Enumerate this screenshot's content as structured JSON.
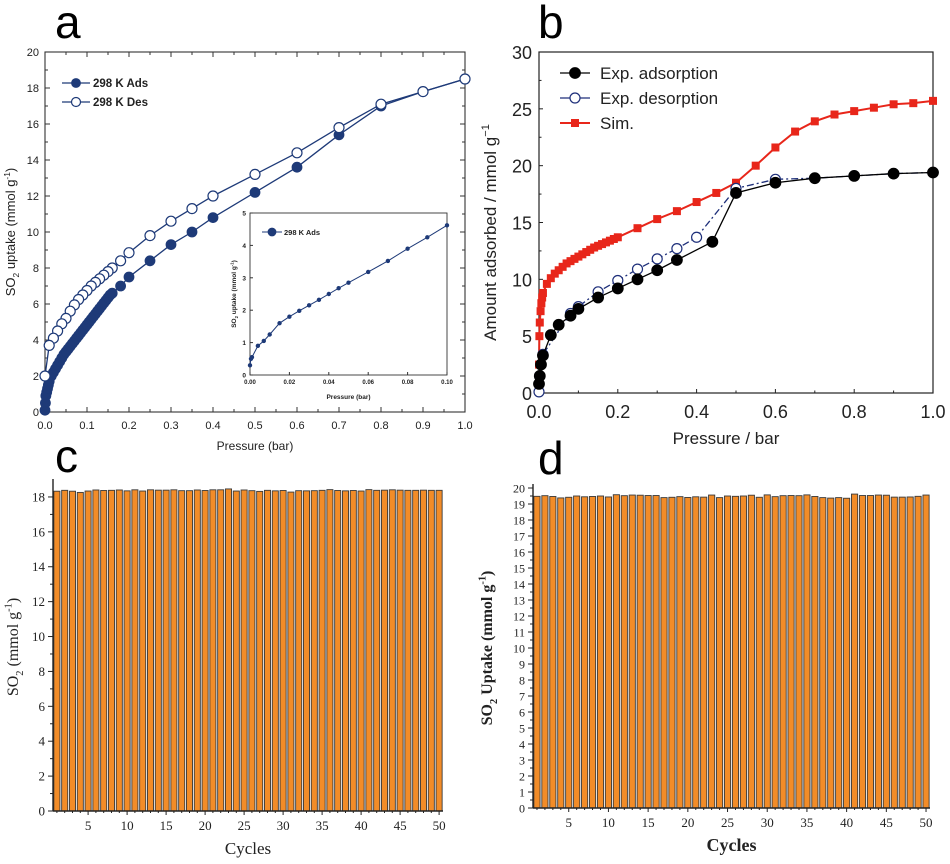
{
  "figure": {
    "panel_labels": [
      "a",
      "b",
      "c",
      "d"
    ]
  },
  "chart_data": [
    {
      "panel": "a",
      "type": "line",
      "title": "",
      "xlabel": "Pressure (bar)",
      "ylabel": "SO2 uptake (mmol g-1)",
      "ylabel_parts": {
        "main": "SO",
        "sub": "2",
        "rest": " uptake (mmol g",
        "sup": "-1",
        "end": ")"
      },
      "xlim": [
        0,
        1.0
      ],
      "ylim": [
        0,
        20
      ],
      "xticks": [
        "0.0",
        "0.1",
        "0.2",
        "0.3",
        "0.4",
        "0.5",
        "0.6",
        "0.7",
        "0.8",
        "0.9",
        "1.0"
      ],
      "yticks": [
        "0",
        "2",
        "4",
        "6",
        "8",
        "10",
        "12",
        "14",
        "16",
        "18",
        "20"
      ],
      "grid": false,
      "legend_position": "top-left",
      "colors": {
        "series": "#1e3a78"
      },
      "series": [
        {
          "name": "298 K Ads",
          "marker": "filled-circle",
          "x": [
            0.0,
            0.001,
            0.002,
            0.004,
            0.006,
            0.008,
            0.01,
            0.015,
            0.02,
            0.025,
            0.03,
            0.035,
            0.04,
            0.045,
            0.05,
            0.055,
            0.06,
            0.065,
            0.07,
            0.075,
            0.08,
            0.085,
            0.09,
            0.095,
            0.1,
            0.105,
            0.11,
            0.115,
            0.12,
            0.125,
            0.13,
            0.135,
            0.14,
            0.145,
            0.15,
            0.155,
            0.16,
            0.18,
            0.2,
            0.25,
            0.3,
            0.35,
            0.4,
            0.5,
            0.6,
            0.7,
            0.8,
            0.9,
            1.0
          ],
          "y": [
            0.1,
            0.5,
            0.9,
            1.1,
            1.3,
            1.5,
            1.7,
            2.0,
            2.2,
            2.4,
            2.6,
            2.8,
            3.0,
            3.2,
            3.35,
            3.5,
            3.65,
            3.8,
            3.95,
            4.1,
            4.25,
            4.4,
            4.55,
            4.7,
            4.85,
            5.0,
            5.15,
            5.3,
            5.45,
            5.6,
            5.75,
            5.9,
            6.05,
            6.2,
            6.35,
            6.5,
            6.6,
            7.0,
            7.5,
            8.4,
            9.3,
            10.0,
            10.8,
            12.2,
            13.6,
            15.4,
            17.0,
            17.8,
            18.5
          ]
        },
        {
          "name": "298 K Des",
          "marker": "open-circle",
          "x": [
            1.0,
            0.9,
            0.8,
            0.7,
            0.6,
            0.5,
            0.4,
            0.35,
            0.3,
            0.25,
            0.2,
            0.18,
            0.16,
            0.15,
            0.14,
            0.13,
            0.12,
            0.11,
            0.1,
            0.09,
            0.08,
            0.07,
            0.06,
            0.05,
            0.04,
            0.03,
            0.02,
            0.01,
            0.0
          ],
          "y": [
            18.5,
            17.8,
            17.1,
            15.8,
            14.4,
            13.2,
            12.0,
            11.3,
            10.6,
            9.8,
            8.85,
            8.4,
            8.0,
            7.8,
            7.6,
            7.4,
            7.2,
            7.0,
            6.75,
            6.5,
            6.25,
            5.95,
            5.6,
            5.2,
            4.9,
            4.5,
            4.1,
            3.7,
            2.0
          ]
        }
      ],
      "inset": {
        "type": "line",
        "xlabel": "Pressure (bar)",
        "ylabel": "SO2 uptake (mmol g-1)",
        "ylabel_parts": {
          "main": "SO",
          "sub": "2",
          "rest": " uptake (mmol g",
          "sup": "-1",
          "end": ")"
        },
        "xlim": [
          0,
          0.1
        ],
        "ylim": [
          0,
          5
        ],
        "xticks": [
          "0.00",
          "0.02",
          "0.04",
          "0.06",
          "0.08",
          "0.10"
        ],
        "yticks": [
          "0",
          "1",
          "2",
          "3",
          "4",
          "5"
        ],
        "legend_position": "top-left",
        "series": [
          {
            "name": "298 K Ads",
            "marker": "filled-circle",
            "x": [
              0.0,
              0.0005,
              0.001,
              0.004,
              0.007,
              0.01,
              0.015,
              0.02,
              0.025,
              0.03,
              0.035,
              0.04,
              0.045,
              0.05,
              0.06,
              0.07,
              0.08,
              0.09,
              0.1
            ],
            "y": [
              0.3,
              0.5,
              0.55,
              0.9,
              1.05,
              1.25,
              1.6,
              1.8,
              1.98,
              2.15,
              2.32,
              2.5,
              2.68,
              2.85,
              3.18,
              3.52,
              3.9,
              4.25,
              4.62
            ]
          }
        ]
      }
    },
    {
      "panel": "b",
      "type": "line",
      "title": "",
      "xlabel": "Pressure / bar",
      "ylabel": "Amount adsorbed / mmol g-1",
      "ylabel_parts": {
        "main": "Amount adsorbed / mmol g",
        "sup": "−1"
      },
      "xlim": [
        0,
        1.0
      ],
      "ylim": [
        0,
        30
      ],
      "xticks": [
        "0.0",
        "0.2",
        "0.4",
        "0.6",
        "0.8",
        "1.0"
      ],
      "yticks": [
        "0",
        "5",
        "10",
        "15",
        "20",
        "25",
        "30"
      ],
      "grid": false,
      "legend_position": "top-left",
      "colors": {
        "adsorption": "#000000",
        "desorption": "#1e2f7a",
        "sim": "#e8261a"
      },
      "series": [
        {
          "name": "Exp. adsorption",
          "marker": "filled-circle",
          "line": "solid",
          "x": [
            0.0,
            0.002,
            0.005,
            0.01,
            0.03,
            0.05,
            0.08,
            0.1,
            0.15,
            0.2,
            0.25,
            0.3,
            0.35,
            0.44,
            0.5,
            0.6,
            0.7,
            0.8,
            0.9,
            1.0
          ],
          "y": [
            0.8,
            1.5,
            2.5,
            3.3,
            5.1,
            6.0,
            6.8,
            7.4,
            8.4,
            9.2,
            10.0,
            10.8,
            11.7,
            13.3,
            17.6,
            18.5,
            18.9,
            19.1,
            19.3,
            19.4
          ]
        },
        {
          "name": "Exp. desorption",
          "marker": "open-circle",
          "line": "dash-dot",
          "x": [
            1.0,
            0.9,
            0.8,
            0.7,
            0.6,
            0.5,
            0.4,
            0.35,
            0.3,
            0.25,
            0.2,
            0.15,
            0.1,
            0.08,
            0.01,
            0.002,
            0.0
          ],
          "y": [
            19.4,
            19.3,
            19.1,
            18.9,
            18.8,
            18.0,
            13.7,
            12.7,
            11.8,
            10.9,
            9.9,
            8.9,
            7.6,
            7.0,
            3.4,
            1.5,
            0.1
          ]
        },
        {
          "name": "Sim.",
          "marker": "filled-square",
          "line": "solid",
          "x": [
            0.0,
            0.001,
            0.002,
            0.004,
            0.006,
            0.008,
            0.01,
            0.02,
            0.03,
            0.04,
            0.05,
            0.06,
            0.07,
            0.08,
            0.09,
            0.1,
            0.11,
            0.12,
            0.13,
            0.14,
            0.15,
            0.16,
            0.17,
            0.18,
            0.19,
            0.2,
            0.25,
            0.3,
            0.35,
            0.4,
            0.45,
            0.5,
            0.55,
            0.6,
            0.65,
            0.7,
            0.75,
            0.8,
            0.85,
            0.9,
            0.95,
            1.0
          ],
          "y": [
            2.5,
            5.0,
            6.2,
            7.2,
            7.9,
            8.4,
            8.8,
            9.6,
            10.1,
            10.5,
            10.8,
            11.1,
            11.4,
            11.6,
            11.8,
            12.0,
            12.2,
            12.4,
            12.6,
            12.8,
            12.95,
            13.1,
            13.25,
            13.4,
            13.55,
            13.7,
            14.5,
            15.3,
            16.0,
            16.8,
            17.6,
            18.5,
            20.0,
            21.6,
            23.0,
            23.9,
            24.5,
            24.8,
            25.1,
            25.4,
            25.5,
            25.7
          ]
        }
      ]
    },
    {
      "panel": "c",
      "type": "bar",
      "title": "",
      "xlabel": "Cycles",
      "ylabel": "SO2 (mmol g-1)",
      "ylabel_parts": {
        "main": "SO",
        "sub": "2",
        "rest": " (mmol g",
        "sup": "-1",
        "end": ")"
      },
      "xlim": [
        0.5,
        50.5
      ],
      "ylim": [
        0,
        18.8
      ],
      "xticks": [
        "5",
        "10",
        "15",
        "20",
        "25",
        "30",
        "35",
        "40",
        "45",
        "50"
      ],
      "yticks": [
        "0",
        "2",
        "4",
        "6",
        "8",
        "10",
        "12",
        "14",
        "16",
        "18"
      ],
      "grid": false,
      "colors": {
        "bar": "#f28c28",
        "bar_edge": "#3a3a3a"
      },
      "categories": [
        1,
        2,
        3,
        4,
        5,
        6,
        7,
        8,
        9,
        10,
        11,
        12,
        13,
        14,
        15,
        16,
        17,
        18,
        19,
        20,
        21,
        22,
        23,
        24,
        25,
        26,
        27,
        28,
        29,
        30,
        31,
        32,
        33,
        34,
        35,
        36,
        37,
        38,
        39,
        40,
        41,
        42,
        43,
        44,
        45,
        46,
        47,
        48,
        49,
        50
      ],
      "values": [
        18.33,
        18.38,
        18.33,
        18.26,
        18.34,
        18.4,
        18.37,
        18.38,
        18.4,
        18.35,
        18.41,
        18.34,
        18.41,
        18.39,
        18.39,
        18.41,
        18.36,
        18.36,
        18.4,
        18.37,
        18.41,
        18.41,
        18.46,
        18.34,
        18.4,
        18.36,
        18.32,
        18.38,
        18.35,
        18.37,
        18.28,
        18.36,
        18.35,
        18.36,
        18.38,
        18.42,
        18.37,
        18.35,
        18.37,
        18.34,
        18.42,
        18.38,
        18.39,
        18.41,
        18.39,
        18.38,
        18.38,
        18.39,
        18.38,
        18.38
      ]
    },
    {
      "panel": "d",
      "type": "bar",
      "title": "",
      "xlabel": "Cycles",
      "ylabel": "SO2 Uptake (mmol g-1)",
      "ylabel_parts": {
        "main": "SO",
        "sub": "2",
        "rest": " Uptake (mmol g",
        "sup": "-1",
        "end": ")"
      },
      "xlim": [
        0.5,
        50.5
      ],
      "ylim": [
        0,
        20
      ],
      "xticks": [
        "5",
        "10",
        "15",
        "20",
        "25",
        "30",
        "35",
        "40",
        "45",
        "50"
      ],
      "yticks": [
        "0",
        "1",
        "2",
        "3",
        "4",
        "5",
        "6",
        "7",
        "8",
        "9",
        "10",
        "11",
        "12",
        "13",
        "14",
        "15",
        "16",
        "17",
        "18",
        "19",
        "20"
      ],
      "grid": false,
      "colors": {
        "bar": "#f28c28",
        "bar_edge": "#3a3a3a"
      },
      "categories": [
        1,
        2,
        3,
        4,
        5,
        6,
        7,
        8,
        9,
        10,
        11,
        12,
        13,
        14,
        15,
        16,
        17,
        18,
        19,
        20,
        21,
        22,
        23,
        24,
        25,
        26,
        27,
        28,
        29,
        30,
        31,
        32,
        33,
        34,
        35,
        36,
        37,
        38,
        39,
        40,
        41,
        42,
        43,
        44,
        45,
        46,
        47,
        48,
        49,
        50
      ],
      "values": [
        19.48,
        19.52,
        19.47,
        19.38,
        19.42,
        19.5,
        19.45,
        19.47,
        19.5,
        19.44,
        19.58,
        19.52,
        19.56,
        19.55,
        19.53,
        19.53,
        19.4,
        19.42,
        19.46,
        19.41,
        19.45,
        19.43,
        19.56,
        19.4,
        19.5,
        19.48,
        19.5,
        19.55,
        19.42,
        19.57,
        19.46,
        19.52,
        19.53,
        19.52,
        19.57,
        19.47,
        19.4,
        19.37,
        19.4,
        19.36,
        19.62,
        19.53,
        19.53,
        19.56,
        19.55,
        19.43,
        19.43,
        19.44,
        19.48,
        19.56
      ]
    }
  ]
}
